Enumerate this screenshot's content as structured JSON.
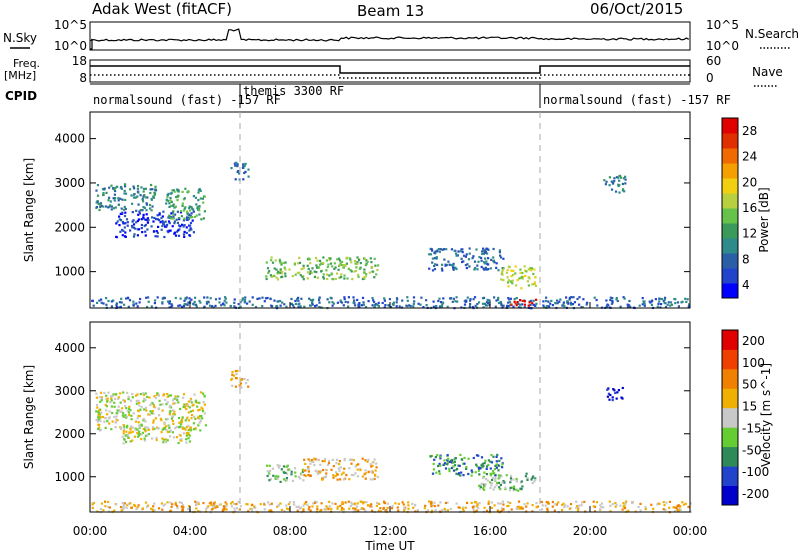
{
  "header": {
    "station": "Adak West (fitACF)",
    "beam": "Beam 13",
    "date": "06/Oct/2015"
  },
  "nsky_panel": {
    "left_label": "N.Sky",
    "right_label": "N.Search",
    "left_ticks": [
      "10^5",
      "10^0"
    ],
    "right_ticks": [
      "10^5",
      "10^0"
    ]
  },
  "freq_panel": {
    "left_label": "Freq.",
    "left_unit": "[MHz]",
    "right_label": "Nave",
    "left_ticks": [
      "18",
      "8"
    ],
    "right_ticks": [
      "60",
      "0"
    ]
  },
  "cpid": {
    "label": "CPID",
    "segments": [
      {
        "name": "normalsound (fast) -157 RF",
        "start_h": 0,
        "end_h": 6
      },
      {
        "name": "themis 3300 RF",
        "start_h": 6,
        "end_h": 18
      },
      {
        "name": "normalsound (fast) -157 RF",
        "start_h": 18,
        "end_h": 24
      }
    ]
  },
  "colors": {
    "power": [
      "#0000ff",
      "#2244cc",
      "#2a5fa8",
      "#2f8a8a",
      "#3a9a5a",
      "#66c24a",
      "#b8d040",
      "#f0d010",
      "#f5a000",
      "#f06a00",
      "#e03000",
      "#e00000"
    ],
    "velocity": [
      "#e00000",
      "#f04000",
      "#f08000",
      "#f0b000",
      "#c8c8c8",
      "#66cc33",
      "#2f8a5a",
      "#2244cc",
      "#0000cc"
    ]
  },
  "chart_data": [
    {
      "type": "heatmap",
      "title": "Power",
      "ylabel": "Slant Range [km]",
      "colorbar_label": "Power [dB]",
      "colorbar_ticks": [
        "4",
        "8",
        "12",
        "16",
        "20",
        "24",
        "28"
      ],
      "xlim_h": [
        0,
        24
      ],
      "ylim_km": [
        180,
        4600
      ],
      "yticks": [
        "1000",
        "2000",
        "3000",
        "4000"
      ],
      "regions": [
        {
          "t0": 0.2,
          "t1": 2.6,
          "r0": 2400,
          "r1": 3000,
          "level": 3
        },
        {
          "t0": 1.0,
          "t1": 4.2,
          "r0": 1800,
          "r1": 2400,
          "level": 1
        },
        {
          "t0": 3.0,
          "t1": 4.6,
          "r0": 2200,
          "r1": 2900,
          "level": 4
        },
        {
          "t0": 5.6,
          "t1": 6.3,
          "r0": 3100,
          "r1": 3500,
          "level": 2
        },
        {
          "t0": 7.0,
          "t1": 11.5,
          "r0": 850,
          "r1": 1350,
          "level": 5
        },
        {
          "t0": 13.5,
          "t1": 16.5,
          "r0": 1050,
          "r1": 1550,
          "level": 2
        },
        {
          "t0": 16.3,
          "t1": 17.8,
          "r0": 650,
          "r1": 1150,
          "level": 6
        },
        {
          "t0": 20.5,
          "t1": 21.4,
          "r0": 2800,
          "r1": 3200,
          "level": 3
        },
        {
          "t0": 0.0,
          "t1": 24.0,
          "r0": 200,
          "r1": 450,
          "level": 2
        },
        {
          "t0": 16.8,
          "t1": 17.8,
          "r0": 250,
          "r1": 400,
          "level": 11
        }
      ]
    },
    {
      "type": "heatmap",
      "title": "Velocity",
      "ylabel": "Slant Range [km]",
      "colorbar_label": "Velocity [m s^-1]",
      "colorbar_ticks": [
        "200",
        "100",
        "50",
        "15",
        "-15",
        "-50",
        "-100",
        "-200"
      ],
      "xlim_h": [
        0,
        24
      ],
      "ylim_km": [
        180,
        4600
      ],
      "yticks": [
        "1000",
        "2000",
        "3000",
        "4000"
      ],
      "xticks": [
        "00:00",
        "04:00",
        "08:00",
        "12:00",
        "16:00",
        "20:00",
        "00:00"
      ],
      "xlabel": "Time UT",
      "regions": [
        {
          "t0": 0.2,
          "t1": 4.6,
          "r0": 2100,
          "r1": 3000,
          "level": 4
        },
        {
          "t0": 1.2,
          "t1": 4.0,
          "r0": 1800,
          "r1": 2200,
          "level": 4
        },
        {
          "t0": 5.6,
          "t1": 6.3,
          "r0": 3100,
          "r1": 3500,
          "level": 3
        },
        {
          "t0": 7.0,
          "t1": 8.5,
          "r0": 900,
          "r1": 1300,
          "level": 5
        },
        {
          "t0": 8.5,
          "t1": 11.5,
          "r0": 950,
          "r1": 1450,
          "level": 3
        },
        {
          "t0": 13.5,
          "t1": 16.5,
          "r0": 1050,
          "r1": 1550,
          "level": 6
        },
        {
          "t0": 15.5,
          "t1": 17.8,
          "r0": 700,
          "r1": 1100,
          "level": 5
        },
        {
          "t0": 20.6,
          "t1": 21.3,
          "r0": 2800,
          "r1": 3100,
          "level": 8
        },
        {
          "t0": 0.0,
          "t1": 24.0,
          "r0": 200,
          "r1": 450,
          "level": 3
        }
      ]
    }
  ]
}
